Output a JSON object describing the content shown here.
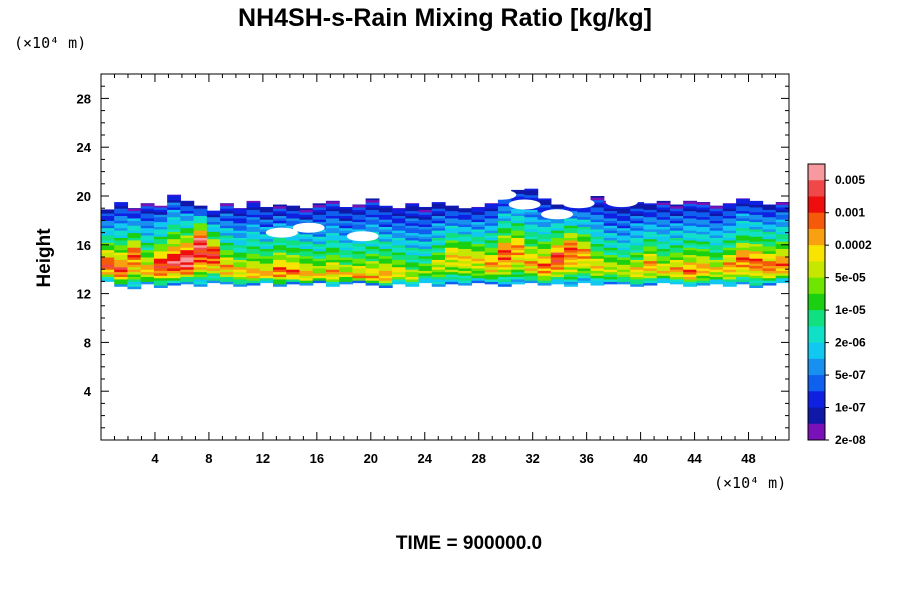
{
  "chart_data": {
    "type": "heatmap",
    "title": "NH4SH-s-Rain Mixing Ratio [kg/kg]",
    "ylabel": "Height",
    "x_unit": "(×10⁴ m)",
    "y_unit": "(×10⁴ m)",
    "xlim": [
      0,
      51
    ],
    "ylim": [
      0,
      30
    ],
    "x_ticks": [
      4,
      8,
      12,
      16,
      20,
      24,
      28,
      32,
      36,
      40,
      44,
      48
    ],
    "y_ticks": [
      4,
      8,
      12,
      16,
      20,
      24,
      28
    ],
    "colorbar": {
      "labels": [
        "0.005",
        "0.001",
        "0.0002",
        "5e-05",
        "1e-05",
        "2e-06",
        "5e-07",
        "1e-07",
        "2e-08"
      ],
      "colors": [
        "#f79aa0",
        "#f04848",
        "#ee0e0e",
        "#f55a0a",
        "#f8a010",
        "#f8e400",
        "#c6e800",
        "#6ee600",
        "#1ad010",
        "#10e080",
        "#10e0c8",
        "#10c8f0",
        "#1890f0",
        "#1060f0",
        "#1020e0",
        "#1018a8",
        "#7a10b8"
      ]
    },
    "layer_top": [
      18.9,
      19.5,
      19.0,
      19.4,
      19.2,
      20.1,
      19.6,
      19.2,
      18.8,
      19.4,
      19.0,
      19.6,
      19.1,
      19.3,
      19.2,
      19.0,
      19.4,
      19.6,
      19.1,
      19.3,
      19.8,
      19.2,
      19.0,
      19.4,
      19.1,
      19.5,
      19.2,
      19.0,
      19.1,
      19.4,
      20.2,
      20.5,
      20.6,
      19.8,
      19.3,
      19.5,
      19.6,
      20.0,
      19.6,
      19.2,
      19.5,
      19.4,
      19.6,
      19.3,
      19.6,
      19.5,
      19.2,
      19.4,
      19.8,
      19.6,
      19.3,
      19.5
    ],
    "layer_bottom": [
      13.0,
      12.6,
      12.4,
      12.8,
      12.5,
      12.7,
      12.8,
      12.6,
      12.9,
      12.8,
      12.6,
      12.7,
      12.9,
      12.6,
      12.8,
      12.7,
      12.9,
      12.6,
      12.8,
      12.9,
      12.7,
      12.5,
      12.8,
      12.6,
      12.9,
      12.6,
      12.8,
      12.7,
      12.9,
      12.8,
      12.6,
      12.8,
      12.9,
      12.7,
      12.8,
      12.6,
      12.9,
      12.7,
      12.8,
      12.8,
      12.6,
      12.7,
      12.9,
      12.8,
      12.6,
      12.7,
      12.8,
      12.6,
      12.8,
      12.5,
      12.7,
      12.9
    ],
    "max_level": [
      14,
      14,
      13,
      12,
      14,
      15,
      16,
      15,
      14,
      12,
      11,
      12,
      12,
      13,
      13,
      12,
      11,
      12,
      11,
      12,
      12,
      12,
      11,
      10,
      9,
      10,
      11,
      11,
      11,
      12,
      13,
      12,
      12,
      13,
      14,
      13,
      12,
      11,
      10,
      10,
      11,
      12,
      11,
      12,
      13,
      12,
      11,
      12,
      13,
      13,
      13,
      13
    ],
    "peak_height": [
      14.5,
      14.0,
      15.5,
      14.0,
      14.5,
      14.8,
      15.0,
      16.5,
      15.5,
      14.2,
      14.0,
      13.8,
      13.6,
      14.0,
      13.8,
      13.6,
      13.5,
      13.8,
      13.6,
      13.4,
      13.4,
      13.6,
      13.8,
      13.4,
      14.0,
      14.6,
      15.4,
      15.2,
      15.0,
      14.6,
      15.6,
      16.0,
      14.6,
      14.4,
      15.2,
      16.0,
      15.6,
      14.4,
      14.2,
      14.0,
      14.0,
      14.6,
      14.0,
      14.0,
      13.8,
      14.2,
      14.0,
      14.4,
      15.0,
      14.8,
      14.4,
      14.6
    ],
    "gaps": [
      {
        "x": 29.6,
        "y": 20.1
      },
      {
        "x": 31.4,
        "y": 19.3
      },
      {
        "x": 33.8,
        "y": 18.5
      },
      {
        "x": 35.4,
        "y": 19.4
      },
      {
        "x": 38.6,
        "y": 19.5
      },
      {
        "x": 19.4,
        "y": 16.7
      },
      {
        "x": 15.4,
        "y": 17.4
      },
      {
        "x": 13.4,
        "y": 17.0
      }
    ],
    "time_label": "TIME = 900000.0"
  }
}
